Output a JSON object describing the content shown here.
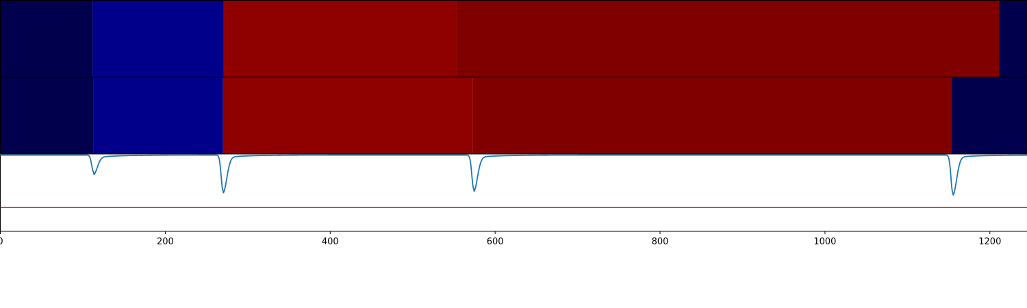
{
  "chart_data": {
    "type": "heatmap",
    "x_range": [
      0,
      1245
    ],
    "x_ticks": [
      0,
      200,
      400,
      600,
      800,
      1000,
      1200
    ],
    "x_tick_labels": [
      "0",
      "200",
      "400",
      "600",
      "800",
      "1000",
      "1200"
    ],
    "segment_rows": [
      {
        "segments": [
          {
            "x0": 0,
            "x1": 112,
            "color": "#00004d"
          },
          {
            "x0": 112,
            "x1": 271,
            "color": "#00008b"
          },
          {
            "x0": 271,
            "x1": 553,
            "color": "#8f0000"
          },
          {
            "x0": 553,
            "x1": 1211,
            "color": "#800000"
          },
          {
            "x0": 1211,
            "x1": 1245,
            "color": "#00004d"
          }
        ]
      },
      {
        "segments": [
          {
            "x0": 0,
            "x1": 113,
            "color": "#00004d"
          },
          {
            "x0": 113,
            "x1": 270,
            "color": "#00008b"
          },
          {
            "x0": 270,
            "x1": 573,
            "color": "#8f0000"
          },
          {
            "x0": 573,
            "x1": 1153,
            "color": "#800000"
          },
          {
            "x0": 1153,
            "x1": 1245,
            "color": "#00004d"
          }
        ]
      }
    ],
    "line_panel": {
      "y_range": [
        0,
        1
      ],
      "threshold": 0.31,
      "threshold_color": "#e31a1c",
      "series_color": "#1f77b4",
      "baseline": 0.995,
      "dips": [
        {
          "x": 113,
          "depth": 0.22
        },
        {
          "x": 270,
          "depth": 0.46
        },
        {
          "x": 574,
          "depth": 0.44
        },
        {
          "x": 1155,
          "depth": 0.49
        }
      ]
    }
  }
}
